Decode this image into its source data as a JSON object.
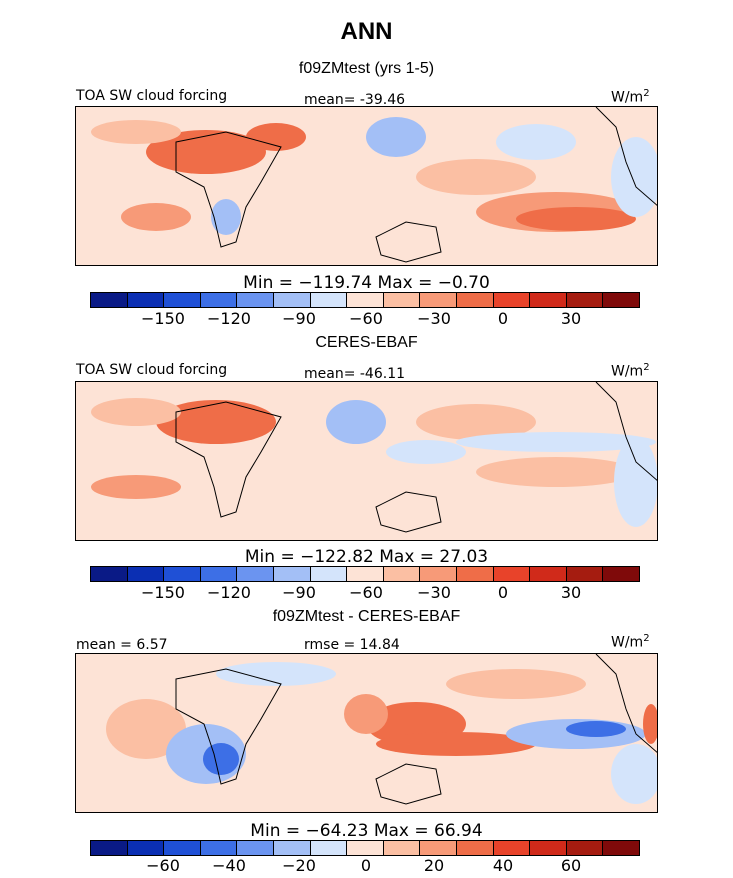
{
  "title": "ANN",
  "palette": [
    "#0a1a86",
    "#0b2fb3",
    "#1f50d6",
    "#3d6fe6",
    "#6b94f0",
    "#a3bff6",
    "#d4e4fb",
    "#fde3d6",
    "#fbbfa3",
    "#f79a78",
    "#ef6d48",
    "#e8432a",
    "#d02a1a",
    "#a51c10",
    "#7f0a0a"
  ],
  "chart_data": [
    {
      "type": "heatmap",
      "title": "f09ZMtest (yrs 1-5)",
      "left_label": "TOA SW cloud forcing",
      "center_label": "mean=  -39.46",
      "units_label": "W/m",
      "units_sup": "2",
      "stats": "Min = −119.74 Max =  −0.70",
      "ticks": [
        "−150",
        "−120",
        "−90",
        "−60",
        "−30",
        "0",
        "30"
      ]
    },
    {
      "type": "heatmap",
      "title": "CERES-EBAF",
      "left_label": "TOA SW cloud forcing",
      "center_label": "mean=  -46.11",
      "units_label": "W/m",
      "units_sup": "2",
      "stats": "Min = −122.82 Max =  27.03",
      "ticks": [
        "−150",
        "−120",
        "−90",
        "−60",
        "−30",
        "0",
        "30"
      ]
    },
    {
      "type": "heatmap",
      "title": "f09ZMtest - CERES-EBAF",
      "left_label": "mean =   6.57",
      "center_label": "rmse =  14.84",
      "units_label": "W/m",
      "units_sup": "2",
      "stats": "Min = −64.23 Max =  66.94",
      "ticks": [
        "−60",
        "−40",
        "−20",
        "0",
        "20",
        "40",
        "60"
      ]
    }
  ]
}
